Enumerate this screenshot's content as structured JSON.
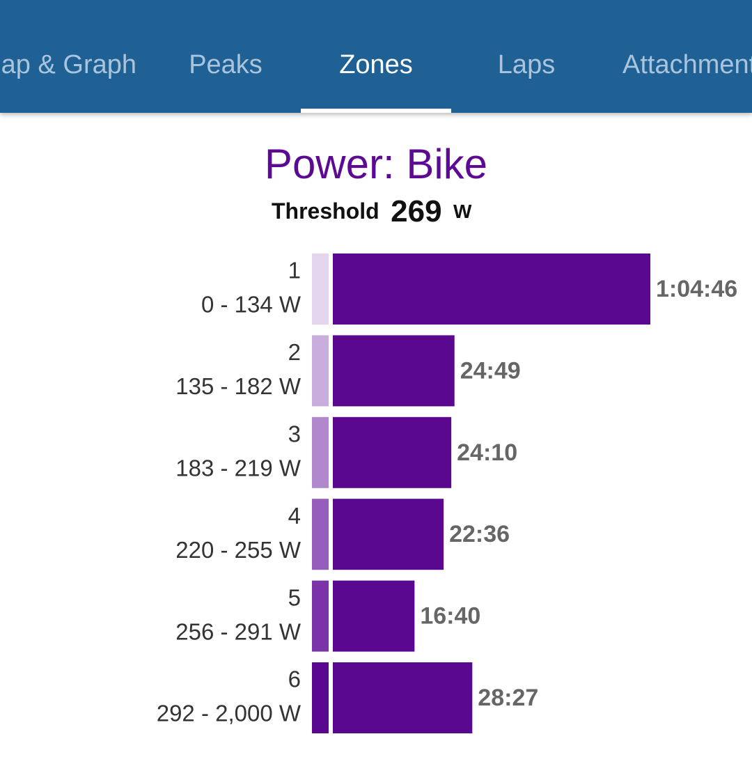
{
  "tabs": [
    {
      "label": "Map & Graph",
      "selected": false
    },
    {
      "label": "Peaks",
      "selected": false
    },
    {
      "label": "Zones",
      "selected": true
    },
    {
      "label": "Laps",
      "selected": false
    },
    {
      "label": "Attachments",
      "selected": false
    }
  ],
  "chart_data": {
    "type": "bar",
    "orientation": "horizontal",
    "title": "Power: Bike",
    "threshold": {
      "label": "Threshold",
      "value": 269,
      "unit": "W"
    },
    "categories": [
      "1",
      "2",
      "3",
      "4",
      "5",
      "6"
    ],
    "ranges": [
      "0 - 134 W",
      "135 - 182 W",
      "183 - 219 W",
      "220 - 255 W",
      "256 - 291 W",
      "292 - 2,000 W"
    ],
    "values": [
      3886,
      1489,
      1450,
      1356,
      1000,
      1707
    ],
    "value_labels": [
      "1:04:46",
      "24:49",
      "24:10",
      "22:36",
      "16:40",
      "28:27"
    ],
    "color": "#5a0890",
    "zone_colors": [
      "#e3d5ee",
      "#c9aedd",
      "#b086cc",
      "#955cbb",
      "#7a33a8",
      "#5a0890"
    ]
  }
}
